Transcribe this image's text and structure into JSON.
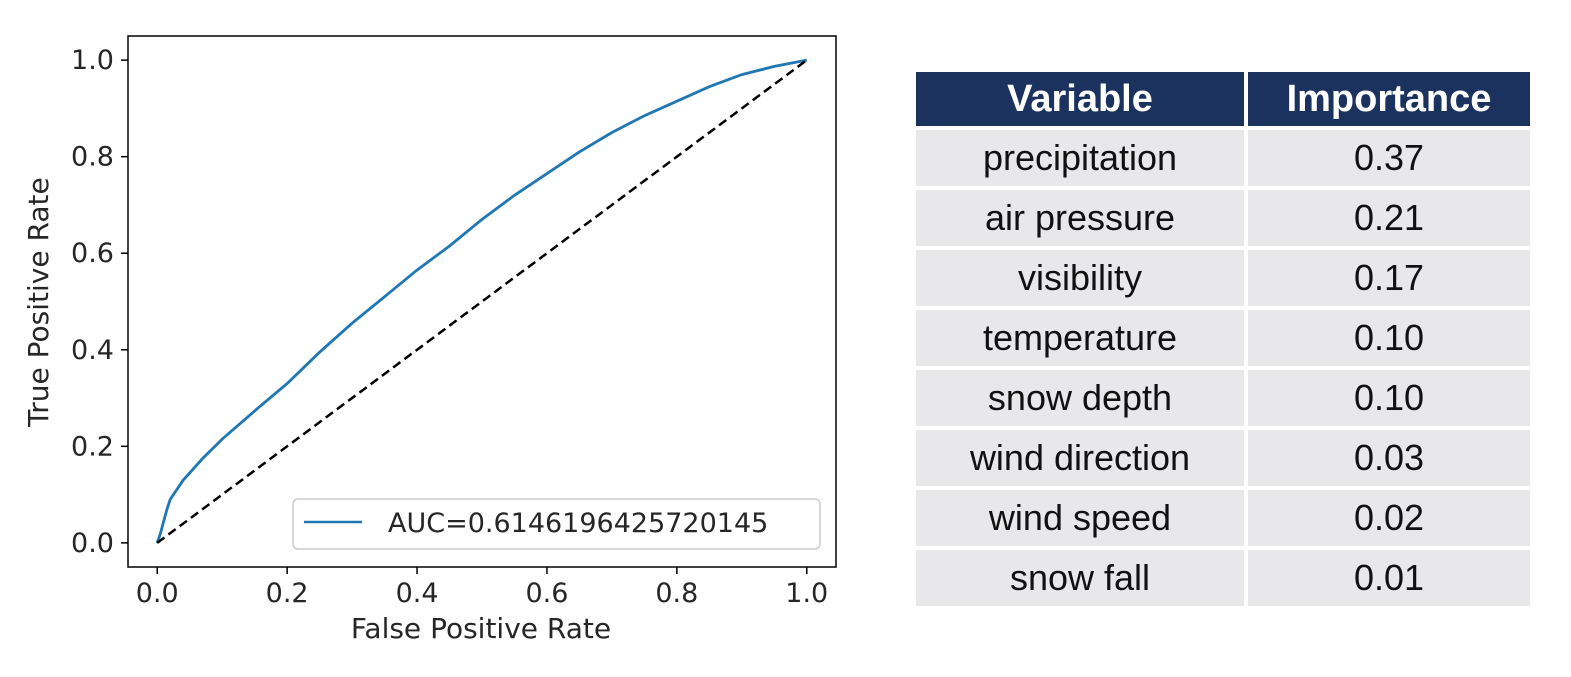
{
  "chart_data": {
    "type": "line",
    "xlabel": "False Positive Rate",
    "ylabel": "True Positive Rate",
    "xlim": [
      -0.045,
      1.045
    ],
    "ylim": [
      -0.05,
      1.05
    ],
    "x_ticks": [
      "0.0",
      "0.2",
      "0.4",
      "0.6",
      "0.8",
      "1.0"
    ],
    "y_ticks": [
      "0.0",
      "0.2",
      "0.4",
      "0.6",
      "0.8",
      "1.0"
    ],
    "grid": false,
    "legend_position": "lower-right",
    "series": [
      {
        "name": "AUC=0.6146196425720145",
        "color": "#1f77b4",
        "x": [
          0.0,
          0.005,
          0.01,
          0.015,
          0.02,
          0.03,
          0.04,
          0.05,
          0.07,
          0.1,
          0.13,
          0.16,
          0.2,
          0.25,
          0.3,
          0.35,
          0.4,
          0.45,
          0.5,
          0.55,
          0.6,
          0.65,
          0.7,
          0.75,
          0.8,
          0.85,
          0.9,
          0.95,
          1.0
        ],
        "y": [
          0.0,
          0.02,
          0.045,
          0.07,
          0.09,
          0.11,
          0.13,
          0.145,
          0.175,
          0.215,
          0.25,
          0.285,
          0.33,
          0.395,
          0.455,
          0.51,
          0.565,
          0.615,
          0.67,
          0.72,
          0.765,
          0.81,
          0.85,
          0.885,
          0.915,
          0.945,
          0.97,
          0.987,
          1.0
        ]
      },
      {
        "name": "",
        "color": "#000000",
        "style": "dashed",
        "x": [
          0.0,
          1.0
        ],
        "y": [
          0.0,
          1.0
        ]
      }
    ]
  },
  "table": {
    "headers": [
      "Variable",
      "Importance"
    ],
    "rows": [
      [
        "precipitation",
        "0.37"
      ],
      [
        "air pressure",
        "0.21"
      ],
      [
        "visibility",
        "0.17"
      ],
      [
        "temperature",
        "0.10"
      ],
      [
        "snow depth",
        "0.10"
      ],
      [
        "wind direction",
        "0.03"
      ],
      [
        "wind speed",
        "0.02"
      ],
      [
        "snow fall",
        "0.01"
      ]
    ]
  }
}
